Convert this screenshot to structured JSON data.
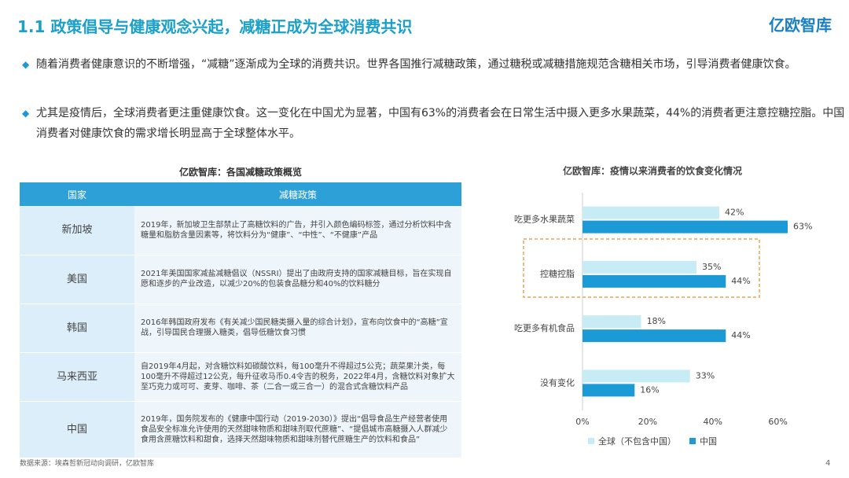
{
  "header": {
    "title": "1.1 政策倡导与健康观念兴起，减糖正成为全球消费共识",
    "logo": "亿欧智库"
  },
  "bullets": [
    "随着消费者健康意识的不断增强，“减糖”逐渐成为全球的消费共识。世界各国推行减糖政策，通过糖税或减糖措施规范含糖相关市场，引导消费者健康饮食。",
    "尤其是疫情后，全球消费者更注重健康饮食。这一变化在中国尤为显著，中国有63%的消费者会在日常生活中摄入更多水果蔬菜，44%的消费者更注意控糖控脂。中国消费者对健康饮食的需求增长明显高于全球整体水平。"
  ],
  "table": {
    "title": "亿欧智库：各国减糖政策概览",
    "columns": [
      "国家",
      "减糖政策"
    ],
    "rows": [
      [
        "新加坡",
        "2019年，新加坡卫生部禁止了高糖饮料的广告，并引入颜色编码标签，通过分析饮料中含糖量和脂肪含量因素等，将饮料分为“健康”、“中性”、“不健康”产品"
      ],
      [
        "美国",
        "2021年美国国家减盐减糖倡议（NSSRI）提出了由政府支持的国家减糖目标，旨在实现自愿和逐步的产业改造，以减少20%的包装食品糖分和40%的饮料糖分"
      ],
      [
        "韩国",
        "2016年韩国政府发布《有关减少国民糖类摄入量的综合计划》，宣布向饮食中的“高糖”宣战，引导国民合理摄入糖类，倡导低糖饮食习惯"
      ],
      [
        "马来西亚",
        "自2019年4月起，对含糖饮料如碳酸饮料，每100毫升不得超过5公克；蔬菜果汁类，每100毫升不得超过12公克，每升征收马币0.4令吉的税务，2022年4月，含糖饮料对象扩大至巧克力或可可、麦芽、咖啡、茶（二合一或三合一）的混合式含糖饮料产品"
      ],
      [
        "中国",
        "2019年，国务院发布的《健康中国行动（2019-2030）》提出“倡导食品生产经营者使用食品安全标准允许使用的天然甜味物质和甜味剂取代蔗糖”、“提倡城市高糖摄入人群减少食用含蔗糖饮料和甜食，选择天然甜味物质和甜味剂替代蔗糖生产的饮料和食品”"
      ]
    ]
  },
  "chart_data": {
    "type": "hbar",
    "title": "亿欧智库：疫情以来消费者的饮食变化情况",
    "categories": [
      "吃更多水果蔬菜",
      "控糖控脂",
      "吃更多有机食品",
      "没有变化"
    ],
    "series": [
      {
        "name": "全球（不包含中国）",
        "color": "#c8ecf6",
        "values": [
          42,
          35,
          18,
          33
        ],
        "value_labels": [
          "42%",
          "35%",
          "18%",
          "33%"
        ]
      },
      {
        "name": "中国",
        "color": "#1b9ad6",
        "values": [
          63,
          44,
          44,
          16
        ],
        "value_labels": [
          "63%",
          "44%",
          "44%",
          "16%"
        ]
      }
    ],
    "xlim": [
      0,
      70
    ],
    "xticks": [
      {
        "value": 0,
        "label": "0%"
      },
      {
        "value": 20,
        "label": "20%"
      },
      {
        "value": 40,
        "label": "40%"
      },
      {
        "value": 60,
        "label": "60%"
      }
    ],
    "legend": "bottom"
  },
  "source": "数据来源：埃森哲新冠动向调研，亿欧智库",
  "page": "4"
}
